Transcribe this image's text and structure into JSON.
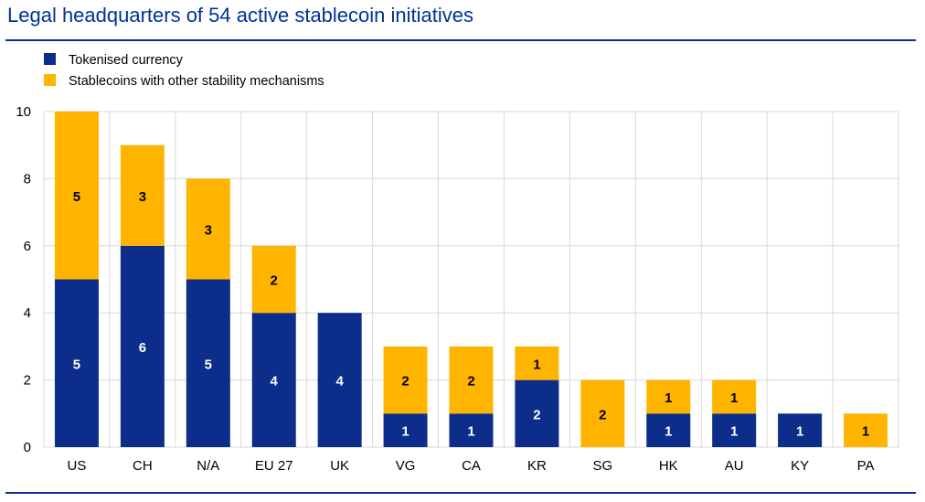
{
  "chart_data": {
    "type": "bar",
    "stacked": true,
    "title": "Legal headquarters of 54 active stablecoin initiatives",
    "categories": [
      "US",
      "CH",
      "N/A",
      "EU 27",
      "UK",
      "VG",
      "CA",
      "KR",
      "SG",
      "HK",
      "AU",
      "KY",
      "PA"
    ],
    "series": [
      {
        "name": "Tokenised currency",
        "color": "#0c2e8a",
        "values": [
          5,
          6,
          5,
          4,
          4,
          1,
          1,
          2,
          0,
          1,
          1,
          1,
          0
        ]
      },
      {
        "name": "Stablecoins with other stability mechanisms",
        "color": "#ffb400",
        "values": [
          5,
          3,
          3,
          2,
          0,
          2,
          2,
          1,
          2,
          1,
          1,
          0,
          1
        ]
      }
    ],
    "yticks": [
      0,
      2,
      4,
      6,
      8,
      10
    ],
    "ylim": [
      0,
      10
    ],
    "xlabel": "",
    "ylabel": "",
    "grid": true,
    "legend": "top-left"
  }
}
